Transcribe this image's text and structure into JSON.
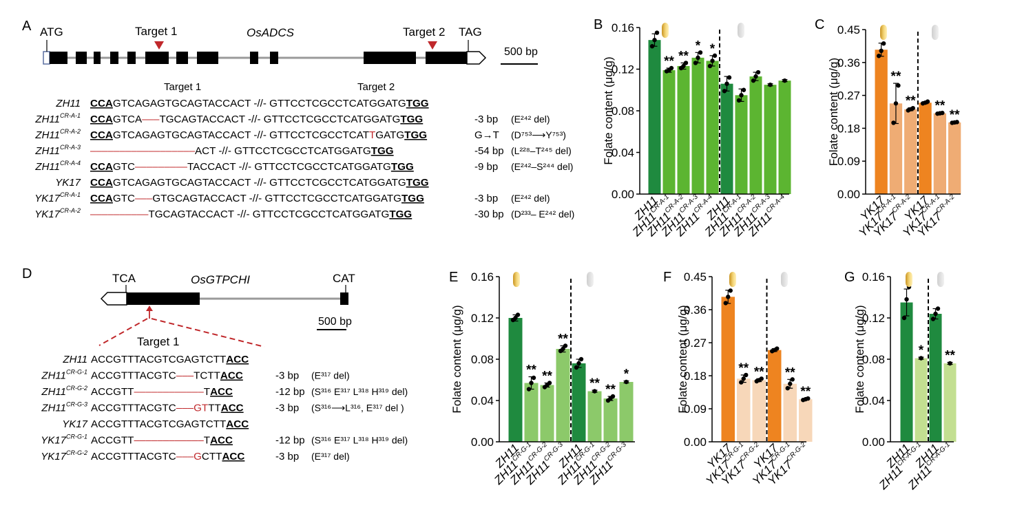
{
  "colors": {
    "dark_green": "#1f8a3f",
    "green": "#5cb531",
    "light_green": "#8cc96a",
    "pale_green": "#c3df91",
    "orange": "#ee8420",
    "light_orange": "#efac74",
    "pale_orange": "#f7d7b9",
    "red": "#c0282b",
    "gray_line": "#9a9a9a"
  },
  "icons": {
    "polished": "polished-rice-grain-icon",
    "brown": "brown-rice-grain-icon"
  },
  "panel_A": {
    "letter": "A",
    "start_codon": "ATG",
    "target1": "Target 1",
    "gene": "OsADCS",
    "target2": "Target 2",
    "stop_codon": "TAG",
    "scale": "500 bp",
    "seq_head1": "Target 1",
    "seq_head2": "Target 2",
    "rows": [
      {
        "label": "ZH11",
        "sup": "",
        "pam1": "CCA",
        "s1a": "GTCAGAGTGCAGTACCACT",
        "gap": "",
        "s1b": "",
        "s2a": "GTTCCTCGCCTCATGGATG",
        "mut": "",
        "s2b": "",
        "pam2": "TGG",
        "change": "",
        "note": ""
      },
      {
        "label": "ZH11",
        "sup": "CR-A-1",
        "pam1": "CCA",
        "s1a": "GTCA",
        "gap": "–––",
        "s1b": "TGCAGTACCACT",
        "s2a": "GTTCCTCGCCTCATGGATG",
        "mut": "",
        "s2b": "",
        "pam2": "TGG",
        "change": "-3 bp",
        "note": "(E²⁴² del)"
      },
      {
        "label": "ZH11",
        "sup": "CR-A-2",
        "pam1": "CCA",
        "s1a": "GTCAGAGTGCAGTACCACT",
        "gap": "",
        "s1b": "",
        "s2a": "GTTCCTCGCCTCAT",
        "mut": "T",
        "s2b": "GATG",
        "pam2": "TGG",
        "change": "G→T",
        "note": "(D⁷⁵³⟶Y⁷⁵³)"
      },
      {
        "label": "ZH11",
        "sup": "CR-A-3",
        "pam1": "",
        "s1a": "",
        "gap": "––––––––––––––––––",
        "s1b": "ACT",
        "s2a": "GTTCCTCGCCTCATGGATG",
        "mut": "",
        "s2b": "",
        "pam2": "TGG",
        "change": "-54 bp",
        "note": "(L²²⁸–T²⁴⁵ del)"
      },
      {
        "label": "ZH11",
        "sup": "CR-A-4",
        "pam1": "CCA",
        "s1a": "GTC",
        "gap": "–––––––––",
        "s1b": "TACCACT",
        "s2a": "GTTCCTCGCCTCATGGATG",
        "mut": "",
        "s2b": "",
        "pam2": "TGG",
        "change": "-9 bp",
        "note": "(E²⁴²–S²⁴⁴ del)"
      },
      {
        "label": "YK17",
        "sup": "",
        "pam1": "CCA",
        "s1a": "GTCAGAGTGCAGTACCACT",
        "gap": "",
        "s1b": "",
        "s2a": "GTTCCTCGCCTCATGGATG",
        "mut": "",
        "s2b": "",
        "pam2": "TGG",
        "change": "",
        "note": ""
      },
      {
        "label": "YK17",
        "sup": "CR-A-1",
        "pam1": "CCA",
        "s1a": "GTC",
        "gap": "–––",
        "s1b": "GTGCAGTACCACT",
        "s2a": "GTTCCTCGCCTCATGGATG",
        "mut": "",
        "s2b": "",
        "pam2": "TGG",
        "change": "-3 bp",
        "note": "(E²⁴² del)"
      },
      {
        "label": "YK17",
        "sup": "CR-A-2",
        "pam1": "",
        "s1a": "",
        "gap": "––––––––––",
        "s1b": "TGCAGTACCACT",
        "s2a": "GTTCCTCGCCTCATGGATG",
        "mut": "",
        "s2b": "",
        "pam2": "TGG",
        "change": "-30 bp",
        "note": "(D²³³– E²⁴² del)"
      }
    ]
  },
  "panel_D": {
    "letter": "D",
    "start_codon": "TCA",
    "gene": "OsGTPCHI",
    "stop_codon": "CAT",
    "scale": "500 bp",
    "target": "Target 1",
    "rows": [
      {
        "label": "ZH11",
        "sup": "",
        "a": "ACCGTTTACGTCGAGTCTT",
        "gap": "",
        "mut": "",
        "b": "",
        "pam": "ACC",
        "change": "",
        "note": ""
      },
      {
        "label": "ZH11",
        "sup": "CR-G-1",
        "a": "ACCGTTTACGTC",
        "gap": "–––",
        "mut": "",
        "b": "TCTT",
        "pam": "ACC",
        "change": "-3 bp",
        "note": "(E³¹⁷ del)"
      },
      {
        "label": "ZH11",
        "sup": "CR-G-2",
        "a": "ACCGTT",
        "gap": "––––––––––––",
        "mut": "",
        "b": "T",
        "pam": "ACC",
        "change": "-12 bp",
        "note": "(S³¹⁶ E³¹⁷ L³¹⁸ H³¹⁹ del)"
      },
      {
        "label": "ZH11",
        "sup": "CR-G-3",
        "a": "ACCGTTTACGTC",
        "gap": "–––",
        "mut": "GT",
        "b": "TT",
        "pam": "ACC",
        "change": "-3 bp",
        "note": "(S³¹⁶⟶L³¹⁶, E³¹⁷ del )"
      },
      {
        "label": "YK17",
        "sup": "",
        "a": "ACCGTTTACGTCGAGTCTT",
        "gap": "",
        "mut": "",
        "b": "",
        "pam": "ACC",
        "change": "",
        "note": ""
      },
      {
        "label": "YK17",
        "sup": "CR-G-1",
        "a": "ACCGTT",
        "gap": "––––––––––––",
        "mut": "",
        "b": "T",
        "pam": "ACC",
        "change": "-12 bp",
        "note": "(S³¹⁶ E³¹⁷ L³¹⁸ H³¹⁹ del)"
      },
      {
        "label": "YK17",
        "sup": "CR-G-2",
        "a": "ACCGTTTACGTC",
        "gap": "–––",
        "mut": "G",
        "b": "CTT",
        "pam": "ACC",
        "change": "-3 bp",
        "note": "(E³¹⁷ del)"
      }
    ]
  },
  "chart_data": [
    {
      "panel": "B",
      "type": "bar",
      "ylabel": "Folate content (μg/g)",
      "ylim": [
        0,
        0.16
      ],
      "ticks": [
        "0.00",
        "0.04",
        "0.08",
        "0.12",
        "0.16"
      ],
      "bars": [
        {
          "label": "ZH11",
          "sup": "",
          "value": 0.148,
          "err": 0.006,
          "color": "dark_green",
          "sig": "",
          "points": [
            0.142,
            0.148,
            0.155
          ]
        },
        {
          "label": "ZH11",
          "sup": "CR-A-1",
          "value": 0.119,
          "err": 0.002,
          "color": "green",
          "sig": "**",
          "points": [
            0.118,
            0.119,
            0.121
          ]
        },
        {
          "label": "ZH11",
          "sup": "CR-A-2",
          "value": 0.123,
          "err": 0.003,
          "color": "green",
          "sig": "**",
          "points": [
            0.121,
            0.123,
            0.126
          ]
        },
        {
          "label": "ZH11",
          "sup": "CR-A-3",
          "value": 0.131,
          "err": 0.005,
          "color": "green",
          "sig": "*",
          "points": [
            0.126,
            0.131,
            0.136
          ]
        },
        {
          "label": "ZH11",
          "sup": "CR-A-4",
          "value": 0.128,
          "err": 0.005,
          "color": "green",
          "sig": "*",
          "points": [
            0.123,
            0.128,
            0.133
          ]
        },
        {
          "label": "ZH11",
          "sup": "",
          "value": 0.106,
          "err": 0.007,
          "color": "dark_green",
          "sig": "",
          "points": [
            0.099,
            0.106,
            0.112
          ]
        },
        {
          "label": "ZH11",
          "sup": "CR-A-1",
          "value": 0.095,
          "err": 0.006,
          "color": "green",
          "sig": "",
          "points": [
            0.09,
            0.095,
            0.1
          ]
        },
        {
          "label": "ZH11",
          "sup": "CR-A-2",
          "value": 0.113,
          "err": 0.004,
          "color": "green",
          "sig": "",
          "points": [
            0.109,
            0.113,
            0.117
          ]
        },
        {
          "label": "ZH11",
          "sup": "CR-A-3",
          "value": 0.105,
          "err": 0.001,
          "color": "green",
          "sig": "",
          "points": [
            0.105
          ]
        },
        {
          "label": "ZH11",
          "sup": "CR-A-4",
          "value": 0.109,
          "err": 0.001,
          "color": "green",
          "sig": "",
          "points": [
            0.109
          ]
        }
      ]
    },
    {
      "panel": "C",
      "type": "bar",
      "ylabel": "Folate content (μg/g)",
      "ylim": [
        0,
        0.45
      ],
      "ticks": [
        "0.00",
        "0.09",
        "0.18",
        "0.27",
        "0.36",
        "0.45"
      ],
      "bars": [
        {
          "label": "YK17",
          "sup": "",
          "value": 0.395,
          "err": 0.018,
          "color": "orange",
          "sig": "",
          "points": [
            0.378,
            0.392,
            0.412
          ]
        },
        {
          "label": "YK17",
          "sup": "CR-A-1",
          "value": 0.248,
          "err": 0.055,
          "color": "light_orange",
          "sig": "**",
          "points": [
            0.195,
            0.248,
            0.297
          ]
        },
        {
          "label": "YK17",
          "sup": "CR-A-2",
          "value": 0.232,
          "err": 0.004,
          "color": "light_orange",
          "sig": "**",
          "points": [
            0.229,
            0.232,
            0.235
          ]
        },
        {
          "label": "YK17",
          "sup": "",
          "value": 0.25,
          "err": 0.003,
          "color": "orange",
          "sig": "",
          "points": [
            0.248,
            0.25,
            0.253
          ]
        },
        {
          "label": "YK17",
          "sup": "CR-A-1",
          "value": 0.221,
          "err": 0.002,
          "color": "light_orange",
          "sig": "**",
          "points": [
            0.22,
            0.221,
            0.222
          ]
        },
        {
          "label": "YK17",
          "sup": "CR-A-2",
          "value": 0.196,
          "err": 0.002,
          "color": "light_orange",
          "sig": "**",
          "points": [
            0.195,
            0.196,
            0.197
          ]
        }
      ]
    },
    {
      "panel": "E",
      "type": "bar",
      "ylabel": "Folate content (μg/g)",
      "ylim": [
        0,
        0.16
      ],
      "ticks": [
        "0.00",
        "0.04",
        "0.08",
        "0.12",
        "0.16"
      ],
      "bars": [
        {
          "label": "ZH11",
          "sup": "",
          "value": 0.12,
          "err": 0.003,
          "color": "dark_green",
          "sig": "",
          "points": [
            0.118,
            0.12,
            0.123
          ]
        },
        {
          "label": "ZH11",
          "sup": "CR-G-1",
          "value": 0.057,
          "err": 0.006,
          "color": "light_green",
          "sig": "**",
          "points": [
            0.051,
            0.057,
            0.062
          ]
        },
        {
          "label": "ZH11",
          "sup": "CR-G-2",
          "value": 0.055,
          "err": 0.002,
          "color": "light_green",
          "sig": "**",
          "points": [
            0.053,
            0.055,
            0.057
          ]
        },
        {
          "label": "ZH11",
          "sup": "CR-G-3",
          "value": 0.09,
          "err": 0.003,
          "color": "light_green",
          "sig": "**",
          "points": [
            0.088,
            0.09,
            0.093
          ]
        },
        {
          "label": "ZH11",
          "sup": "",
          "value": 0.076,
          "err": 0.004,
          "color": "dark_green",
          "sig": "",
          "points": [
            0.072,
            0.076,
            0.08
          ]
        },
        {
          "label": "ZH11",
          "sup": "CR-G-1",
          "value": 0.049,
          "err": 0.001,
          "color": "light_green",
          "sig": "**",
          "points": [
            0.049
          ]
        },
        {
          "label": "ZH11",
          "sup": "CR-G-2",
          "value": 0.042,
          "err": 0.002,
          "color": "light_green",
          "sig": "**",
          "points": [
            0.04,
            0.042,
            0.044
          ]
        },
        {
          "label": "ZH11",
          "sup": "CR-G-3",
          "value": 0.058,
          "err": 0.001,
          "color": "light_green",
          "sig": "*",
          "points": [
            0.058
          ]
        }
      ]
    },
    {
      "panel": "F",
      "type": "bar",
      "ylabel": "Folate content (μg/g)",
      "ylim": [
        0,
        0.45
      ],
      "ticks": [
        "0.00",
        "0.09",
        "0.18",
        "0.27",
        "0.36",
        "0.45"
      ],
      "bars": [
        {
          "label": "YK17",
          "sup": "",
          "value": 0.395,
          "err": 0.018,
          "color": "orange",
          "sig": "",
          "points": [
            0.378,
            0.395,
            0.412
          ]
        },
        {
          "label": "YK17",
          "sup": "CR-G-1",
          "value": 0.172,
          "err": 0.01,
          "color": "pale_orange",
          "sig": "**",
          "points": [
            0.162,
            0.172,
            0.182
          ]
        },
        {
          "label": "YK17",
          "sup": "CR-G-2",
          "value": 0.168,
          "err": 0.004,
          "color": "pale_orange",
          "sig": "**",
          "points": [
            0.165,
            0.168,
            0.172
          ]
        },
        {
          "label": "YK17",
          "sup": "",
          "value": 0.25,
          "err": 0.004,
          "color": "orange",
          "sig": "",
          "points": [
            0.247,
            0.25,
            0.254
          ]
        },
        {
          "label": "YK17",
          "sup": "CR-G-1",
          "value": 0.158,
          "err": 0.012,
          "color": "pale_orange",
          "sig": "**",
          "points": [
            0.146,
            0.158,
            0.17
          ]
        },
        {
          "label": "YK17",
          "sup": "CR-G-2",
          "value": 0.116,
          "err": 0.002,
          "color": "pale_orange",
          "sig": "**",
          "points": [
            0.114,
            0.116,
            0.118
          ]
        }
      ]
    },
    {
      "panel": "G",
      "type": "bar",
      "ylabel": "Folate content (μg/g)",
      "ylim": [
        0,
        0.16
      ],
      "ticks": [
        "0.00",
        "0.04",
        "0.08",
        "0.12",
        "0.16"
      ],
      "bars": [
        {
          "label": "ZH11",
          "sup": "",
          "value": 0.135,
          "err": 0.013,
          "color": "dark_green",
          "sig": "",
          "points": [
            0.12,
            0.138,
            0.15
          ]
        },
        {
          "label": "ZH11",
          "sup": "CR-A-G-1",
          "value": 0.081,
          "err": 0.001,
          "color": "pale_green",
          "sig": "*",
          "points": [
            0.081
          ]
        },
        {
          "label": "ZH11",
          "sup": "",
          "value": 0.124,
          "err": 0.005,
          "color": "dark_green",
          "sig": "",
          "points": [
            0.119,
            0.124,
            0.129
          ]
        },
        {
          "label": "ZH11",
          "sup": "CR-A-G-1",
          "value": 0.076,
          "err": 0.001,
          "color": "pale_green",
          "sig": "**",
          "points": [
            0.076
          ]
        }
      ]
    }
  ]
}
